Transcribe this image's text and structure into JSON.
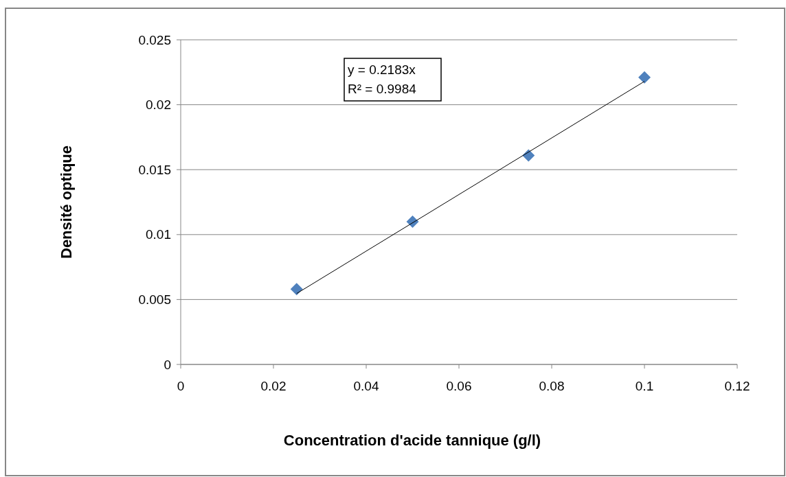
{
  "chart_data": {
    "type": "scatter",
    "xlabel": "Concentration d'acide tannique (g/l)",
    "ylabel": "Densité optique",
    "annotations": [
      "y = 0.2183x",
      "R² = 0.9984"
    ],
    "series": [
      {
        "x": [
          0.025,
          0.05,
          0.075,
          0.1
        ],
        "values": [
          0.0058,
          0.011,
          0.0161,
          0.0221
        ],
        "color": "#4f81bd",
        "marker": "diamond"
      },
      {
        "type": "line",
        "x": [
          0.025,
          0.1
        ],
        "values": [
          0.00546,
          0.0218
        ],
        "color": "#000000",
        "marker": "none",
        "line_style": "solid"
      }
    ],
    "xlim": [
      0,
      0.12
    ],
    "xticks": [
      0,
      0.02,
      0.04,
      0.06,
      0.08,
      0.1,
      0.12
    ],
    "ylim": [
      0,
      0.025
    ],
    "yticks": [
      0,
      0.005,
      0.01,
      0.015,
      0.02,
      0.025
    ],
    "grid": "y"
  }
}
